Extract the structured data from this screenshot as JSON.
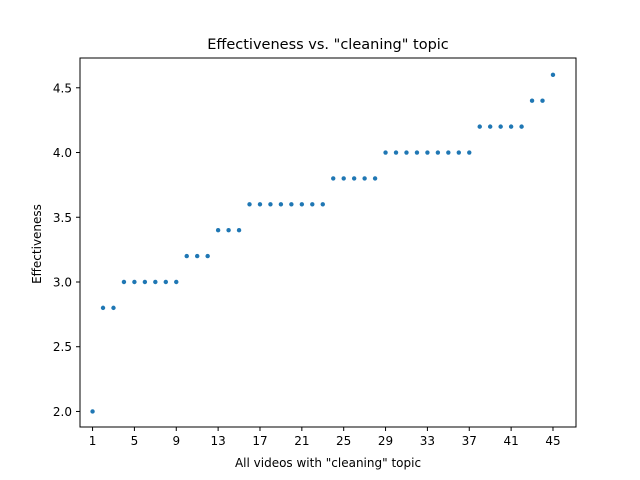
{
  "chart_data": {
    "type": "scatter",
    "title": "Effectiveness vs. \"cleaning\" topic",
    "xlabel": "All videos with \"cleaning\" topic",
    "ylabel": "Effectiveness",
    "xlim": [
      -0.2,
      47.2
    ],
    "ylim": [
      1.88,
      4.73
    ],
    "xticks": [
      1,
      5,
      9,
      13,
      17,
      21,
      25,
      29,
      33,
      37,
      41,
      45
    ],
    "yticks": [
      2.0,
      2.5,
      3.0,
      3.5,
      4.0,
      4.5
    ],
    "ytick_labels": [
      "2.0",
      "2.5",
      "3.0",
      "3.5",
      "4.0",
      "4.5"
    ],
    "grid": false,
    "color": "#1f77b4",
    "x": [
      1,
      2,
      3,
      4,
      5,
      6,
      7,
      8,
      9,
      10,
      11,
      12,
      13,
      14,
      15,
      16,
      17,
      18,
      19,
      20,
      21,
      22,
      23,
      24,
      25,
      26,
      27,
      28,
      29,
      30,
      31,
      32,
      33,
      34,
      35,
      36,
      37,
      38,
      39,
      40,
      41,
      42,
      43,
      44,
      45
    ],
    "y": [
      2.0,
      2.8,
      2.8,
      3.0,
      3.0,
      3.0,
      3.0,
      3.0,
      3.0,
      3.2,
      3.2,
      3.2,
      3.4,
      3.4,
      3.4,
      3.6,
      3.6,
      3.6,
      3.6,
      3.6,
      3.6,
      3.6,
      3.6,
      3.8,
      3.8,
      3.8,
      3.8,
      3.8,
      4.0,
      4.0,
      4.0,
      4.0,
      4.0,
      4.0,
      4.0,
      4.0,
      4.0,
      4.2,
      4.2,
      4.2,
      4.2,
      4.2,
      4.4,
      4.4,
      4.6
    ]
  }
}
